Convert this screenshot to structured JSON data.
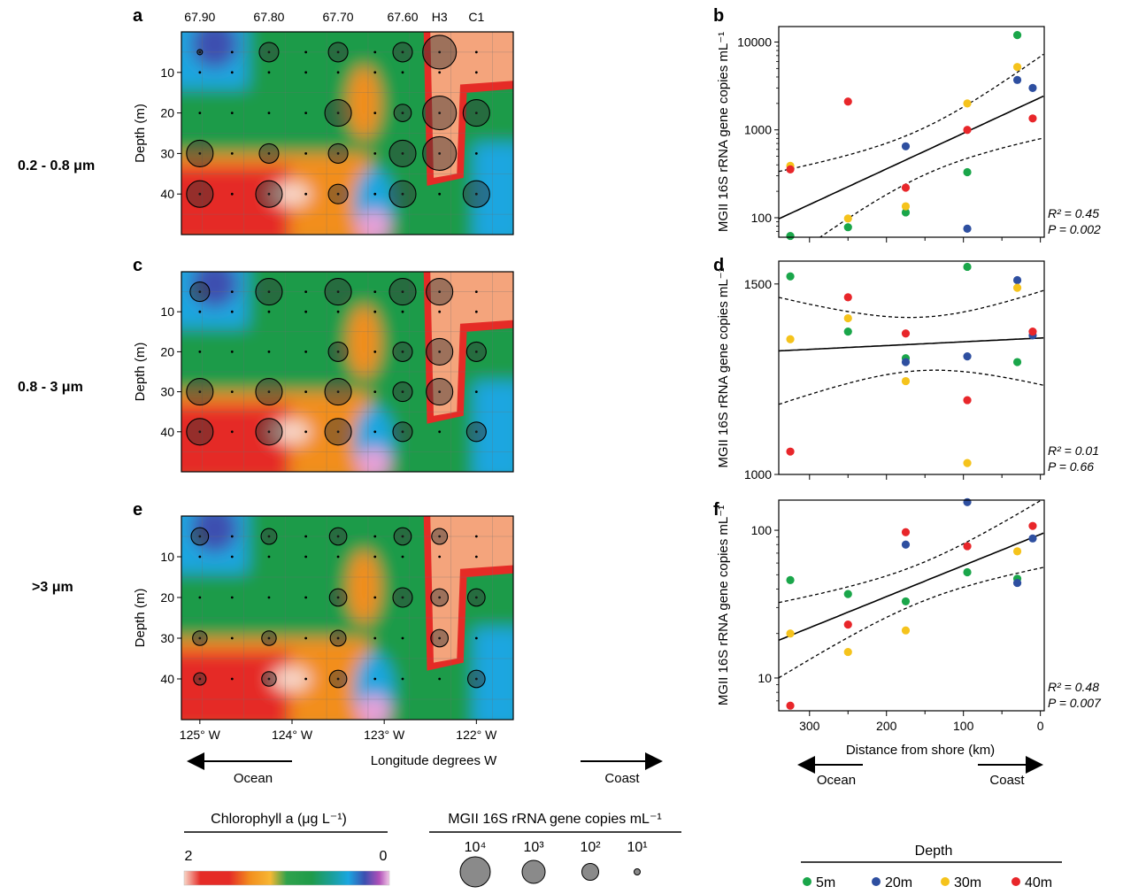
{
  "colors": {
    "green_5m": "#1aa64a",
    "blue_20m": "#2e4fa0",
    "yellow_30m": "#f5c31c",
    "red_40m": "#e8262a",
    "salmon_coast": "#f4a47c",
    "chl_green": "#1f9b4a",
    "chl_orange": "#f28e1e",
    "chl_red": "#e52b26",
    "chl_blue": "#1aa6e0"
  },
  "row_labels": [
    "0.2 - 0.8 μm",
    "0.8 - 3 μm",
    ">3 μm"
  ],
  "legend": {
    "chlorophyll_title": "Chlorophyll a (μg L⁻¹)",
    "chlorophyll_min": "0",
    "chlorophyll_max": "2",
    "mgii_title": "MGII 16S rRNA gene copies mL⁻¹",
    "mgii_sizes": [
      {
        "label": "10⁴",
        "value": 10000
      },
      {
        "label": "10³",
        "value": 1000
      },
      {
        "label": "10²",
        "value": 100
      },
      {
        "label": "10¹",
        "value": 10
      }
    ],
    "depth_title": "Depth",
    "depth_items": [
      {
        "label": "5m",
        "color_key": "green_5m"
      },
      {
        "label": "20m",
        "color_key": "blue_20m"
      },
      {
        "label": "30m",
        "color_key": "yellow_30m"
      },
      {
        "label": "40m",
        "color_key": "red_40m"
      }
    ]
  },
  "chart_data": [
    {
      "panel": "a",
      "type": "heatmap",
      "top_labels": [
        "67.90",
        "67.80",
        "67.70",
        "67.60",
        "H3",
        "C1"
      ],
      "ylabel": "Depth (m)",
      "yticks": [
        10,
        20,
        30,
        40
      ],
      "ylim": [
        0,
        50
      ],
      "xlim": [
        125.2,
        121.6
      ],
      "bubbles": [
        {
          "lon": 125.0,
          "depth": 5,
          "size": 1
        },
        {
          "lon": 124.25,
          "depth": 5,
          "size": 100
        },
        {
          "lon": 123.5,
          "depth": 5,
          "size": 100
        },
        {
          "lon": 122.8,
          "depth": 5,
          "size": 100
        },
        {
          "lon": 122.4,
          "depth": 5,
          "size": 10000
        },
        {
          "lon": 123.5,
          "depth": 20,
          "size": 1000
        },
        {
          "lon": 122.8,
          "depth": 20,
          "size": 50
        },
        {
          "lon": 122.4,
          "depth": 20,
          "size": 10000
        },
        {
          "lon": 122.0,
          "depth": 20,
          "size": 1000
        },
        {
          "lon": 125.0,
          "depth": 30,
          "size": 1000
        },
        {
          "lon": 124.25,
          "depth": 30,
          "size": 100
        },
        {
          "lon": 123.5,
          "depth": 30,
          "size": 100
        },
        {
          "lon": 122.8,
          "depth": 30,
          "size": 1000
        },
        {
          "lon": 122.4,
          "depth": 30,
          "size": 10000
        },
        {
          "lon": 125.0,
          "depth": 40,
          "size": 1000
        },
        {
          "lon": 124.25,
          "depth": 40,
          "size": 1000
        },
        {
          "lon": 123.5,
          "depth": 40,
          "size": 100
        },
        {
          "lon": 122.8,
          "depth": 40,
          "size": 1000
        },
        {
          "lon": 122.0,
          "depth": 40,
          "size": 1000
        }
      ]
    },
    {
      "panel": "b",
      "type": "scatter",
      "xlabel": "",
      "ylabel": "MGII 16S rRNA gene copies mL⁻¹",
      "yscale": "log",
      "ylim": [
        60,
        15000
      ],
      "yticks": [
        100,
        1000,
        10000
      ],
      "xlim": [
        340,
        -5
      ],
      "stats": {
        "r2": "R² = 0.45",
        "p": "P = 0.002"
      },
      "points": [
        {
          "x": 325,
          "y": 62,
          "depth": "5m"
        },
        {
          "x": 250,
          "y": 78,
          "depth": "5m"
        },
        {
          "x": 175,
          "y": 115,
          "depth": "5m"
        },
        {
          "x": 95,
          "y": 330,
          "depth": "5m"
        },
        {
          "x": 30,
          "y": 12000,
          "depth": "5m"
        },
        {
          "x": 175,
          "y": 650,
          "depth": "20m"
        },
        {
          "x": 95,
          "y": 75,
          "depth": "20m"
        },
        {
          "x": 30,
          "y": 3700,
          "depth": "20m"
        },
        {
          "x": 10,
          "y": 3000,
          "depth": "20m"
        },
        {
          "x": 325,
          "y": 390,
          "depth": "30m"
        },
        {
          "x": 250,
          "y": 98,
          "depth": "30m"
        },
        {
          "x": 175,
          "y": 135,
          "depth": "30m"
        },
        {
          "x": 95,
          "y": 2000,
          "depth": "30m"
        },
        {
          "x": 30,
          "y": 5200,
          "depth": "30m"
        },
        {
          "x": 325,
          "y": 355,
          "depth": "40m"
        },
        {
          "x": 250,
          "y": 2100,
          "depth": "40m"
        },
        {
          "x": 175,
          "y": 220,
          "depth": "40m"
        },
        {
          "x": 95,
          "y": 1000,
          "depth": "40m"
        },
        {
          "x": 10,
          "y": 1350,
          "depth": "40m"
        }
      ]
    },
    {
      "panel": "c",
      "type": "heatmap",
      "ylabel": "Depth (m)",
      "yticks": [
        10,
        20,
        30,
        40
      ],
      "ylim": [
        0,
        50
      ],
      "xlim": [
        125.2,
        121.6
      ],
      "bubbles": [
        {
          "lon": 125.0,
          "depth": 5,
          "size": 100
        },
        {
          "lon": 124.25,
          "depth": 5,
          "size": 1000
        },
        {
          "lon": 123.5,
          "depth": 5,
          "size": 1000
        },
        {
          "lon": 122.8,
          "depth": 5,
          "size": 1000
        },
        {
          "lon": 122.4,
          "depth": 5,
          "size": 1000
        },
        {
          "lon": 123.5,
          "depth": 20,
          "size": 100
        },
        {
          "lon": 122.8,
          "depth": 20,
          "size": 100
        },
        {
          "lon": 122.4,
          "depth": 20,
          "size": 1000
        },
        {
          "lon": 122.0,
          "depth": 20,
          "size": 100
        },
        {
          "lon": 125.0,
          "depth": 30,
          "size": 1000
        },
        {
          "lon": 124.25,
          "depth": 30,
          "size": 1000
        },
        {
          "lon": 123.5,
          "depth": 30,
          "size": 1000
        },
        {
          "lon": 122.8,
          "depth": 30,
          "size": 100
        },
        {
          "lon": 122.4,
          "depth": 30,
          "size": 1000
        },
        {
          "lon": 125.0,
          "depth": 40,
          "size": 1000
        },
        {
          "lon": 124.25,
          "depth": 40,
          "size": 1000
        },
        {
          "lon": 123.5,
          "depth": 40,
          "size": 1000
        },
        {
          "lon": 122.8,
          "depth": 40,
          "size": 100
        },
        {
          "lon": 122.0,
          "depth": 40,
          "size": 100
        }
      ]
    },
    {
      "panel": "d",
      "type": "scatter",
      "xlabel": "",
      "ylabel": "MGII 16S rRNA gene copies mL⁻¹",
      "yscale": "linear",
      "ylim": [
        1000,
        1560
      ],
      "yticks": [
        1000,
        1500
      ],
      "xlim": [
        340,
        -5
      ],
      "stats": {
        "r2": "R² = 0.01",
        "p": "P = 0.66"
      },
      "points": [
        {
          "x": 325,
          "y": 1520,
          "depth": "5m"
        },
        {
          "x": 250,
          "y": 1375,
          "depth": "5m"
        },
        {
          "x": 175,
          "y": 1305,
          "depth": "5m"
        },
        {
          "x": 95,
          "y": 1545,
          "depth": "5m"
        },
        {
          "x": 30,
          "y": 1295,
          "depth": "5m"
        },
        {
          "x": 175,
          "y": 1295,
          "depth": "20m"
        },
        {
          "x": 95,
          "y": 1310,
          "depth": "20m"
        },
        {
          "x": 30,
          "y": 1510,
          "depth": "20m"
        },
        {
          "x": 10,
          "y": 1365,
          "depth": "20m"
        },
        {
          "x": 325,
          "y": 1355,
          "depth": "30m"
        },
        {
          "x": 250,
          "y": 1410,
          "depth": "30m"
        },
        {
          "x": 175,
          "y": 1245,
          "depth": "30m"
        },
        {
          "x": 95,
          "y": 1030,
          "depth": "30m"
        },
        {
          "x": 30,
          "y": 1490,
          "depth": "30m"
        },
        {
          "x": 325,
          "y": 1060,
          "depth": "40m"
        },
        {
          "x": 250,
          "y": 1465,
          "depth": "40m"
        },
        {
          "x": 175,
          "y": 1370,
          "depth": "40m"
        },
        {
          "x": 95,
          "y": 1195,
          "depth": "40m"
        },
        {
          "x": 10,
          "y": 1375,
          "depth": "40m"
        }
      ]
    },
    {
      "panel": "e",
      "type": "heatmap",
      "xlabel": "Longitude degrees W",
      "xticks": [
        "125° W",
        "124° W",
        "123° W",
        "122° W"
      ],
      "xtick_values": [
        125,
        124,
        123,
        122
      ],
      "ylabel": "Depth (m)",
      "yticks": [
        10,
        20,
        30,
        40
      ],
      "ylim": [
        0,
        50
      ],
      "xlim": [
        125.2,
        121.6
      ],
      "bubbles": [
        {
          "lon": 125.0,
          "depth": 5,
          "size": 50
        },
        {
          "lon": 124.25,
          "depth": 5,
          "size": 30
        },
        {
          "lon": 123.5,
          "depth": 5,
          "size": 50
        },
        {
          "lon": 122.8,
          "depth": 5,
          "size": 50
        },
        {
          "lon": 122.4,
          "depth": 5,
          "size": 30
        },
        {
          "lon": 123.5,
          "depth": 20,
          "size": 50
        },
        {
          "lon": 122.8,
          "depth": 20,
          "size": 100
        },
        {
          "lon": 122.4,
          "depth": 20,
          "size": 50
        },
        {
          "lon": 122.0,
          "depth": 20,
          "size": 50
        },
        {
          "lon": 125.0,
          "depth": 30,
          "size": 20
        },
        {
          "lon": 124.25,
          "depth": 30,
          "size": 20
        },
        {
          "lon": 123.5,
          "depth": 30,
          "size": 30
        },
        {
          "lon": 122.4,
          "depth": 30,
          "size": 50
        },
        {
          "lon": 125.0,
          "depth": 40,
          "size": 10
        },
        {
          "lon": 124.25,
          "depth": 40,
          "size": 20
        },
        {
          "lon": 123.5,
          "depth": 40,
          "size": 50
        },
        {
          "lon": 122.0,
          "depth": 40,
          "size": 50
        }
      ],
      "direction": {
        "left": "Ocean",
        "right": "Coast"
      }
    },
    {
      "panel": "f",
      "type": "scatter",
      "xlabel": "Distance from shore (km)",
      "xticks": [
        300,
        200,
        100,
        0
      ],
      "ylabel": "MGII 16S rRNA gene copies mL⁻¹",
      "yscale": "log",
      "ylim": [
        6,
        160
      ],
      "yticks": [
        10,
        100
      ],
      "xlim": [
        340,
        -5
      ],
      "stats": {
        "r2": "R² = 0.48",
        "p": "P = 0.007"
      },
      "points": [
        {
          "x": 325,
          "y": 46,
          "depth": "5m"
        },
        {
          "x": 250,
          "y": 37,
          "depth": "5m"
        },
        {
          "x": 175,
          "y": 33,
          "depth": "5m"
        },
        {
          "x": 95,
          "y": 52,
          "depth": "5m"
        },
        {
          "x": 30,
          "y": 47,
          "depth": "5m"
        },
        {
          "x": 175,
          "y": 80,
          "depth": "20m"
        },
        {
          "x": 95,
          "y": 155,
          "depth": "20m"
        },
        {
          "x": 30,
          "y": 44,
          "depth": "20m"
        },
        {
          "x": 10,
          "y": 88,
          "depth": "20m"
        },
        {
          "x": 325,
          "y": 20,
          "depth": "30m"
        },
        {
          "x": 250,
          "y": 15,
          "depth": "30m"
        },
        {
          "x": 175,
          "y": 21,
          "depth": "30m"
        },
        {
          "x": 30,
          "y": 72,
          "depth": "30m"
        },
        {
          "x": 325,
          "y": 6.5,
          "depth": "40m"
        },
        {
          "x": 250,
          "y": 23,
          "depth": "40m"
        },
        {
          "x": 175,
          "y": 97,
          "depth": "40m"
        },
        {
          "x": 95,
          "y": 78,
          "depth": "40m"
        },
        {
          "x": 10,
          "y": 107,
          "depth": "40m"
        }
      ],
      "direction": {
        "left": "Ocean",
        "right": "Coast"
      }
    }
  ]
}
